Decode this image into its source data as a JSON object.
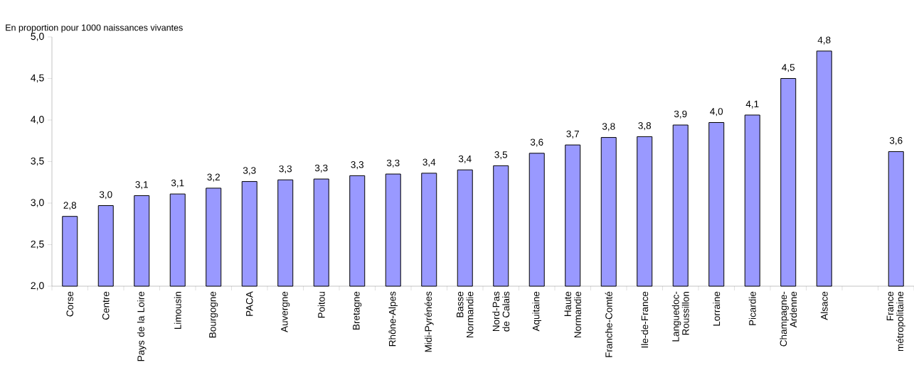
{
  "chart_data": {
    "type": "bar",
    "ylabel": "En proportion pour 1000 naissances vivantes",
    "categories": [
      "Corse",
      "Centre",
      "Pays de la Loire",
      "Limousin",
      "Bourgogne",
      "PACA",
      "Auvergne",
      "Poitou",
      "Bretagne",
      "Rhône-Alpes",
      "Midi-Pyrénées",
      "Basse Normandie",
      "Nord-Pas de Calais",
      "Aquitaine",
      "Haute Normandie",
      "Franche-Comté",
      "Ile-de-France",
      "Languedoc-Roussillon",
      "Lorraine",
      "Picardie",
      "Champagne-Ardenne",
      "Alsace",
      null,
      "France métropolitaine"
    ],
    "values": [
      2.84,
      2.97,
      3.09,
      3.11,
      3.18,
      3.26,
      3.28,
      3.29,
      3.33,
      3.35,
      3.36,
      3.4,
      3.45,
      3.6,
      3.7,
      3.79,
      3.8,
      3.94,
      3.97,
      4.06,
      4.5,
      4.83,
      null,
      3.62
    ],
    "value_labels": [
      "2,8",
      "3,0",
      "3,1",
      "3,1",
      "3,2",
      "3,3",
      "3,3",
      "3,3",
      "3,3",
      "3,3",
      "3,4",
      "3,4",
      "3,5",
      "3,6",
      "3,7",
      "3,8",
      "3,8",
      "3,9",
      "4,0",
      "4,1",
      "4,5",
      "4,8",
      null,
      "3,6"
    ],
    "color": "#9999ff",
    "ylim": [
      2.0,
      5.0
    ],
    "yticks": [
      {
        "value": 2.0,
        "label": "2,0"
      },
      {
        "value": 2.5,
        "label": "2,5"
      },
      {
        "value": 3.0,
        "label": "3,0"
      },
      {
        "value": 3.5,
        "label": "3,5"
      },
      {
        "value": 4.0,
        "label": "4,0"
      },
      {
        "value": 4.5,
        "label": "4,5"
      },
      {
        "value": 5.0,
        "label": "5,0"
      }
    ]
  }
}
